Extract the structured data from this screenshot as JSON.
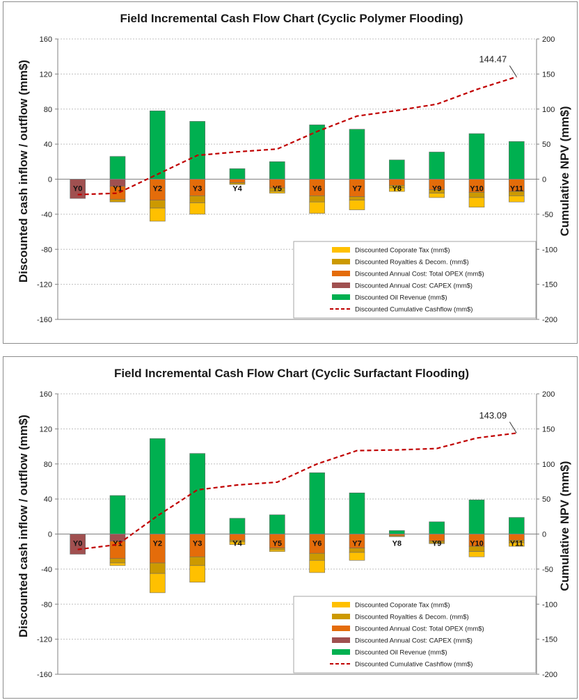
{
  "colors": {
    "tax": "#FFC000",
    "royalty": "#CC9900",
    "opex": "#E46C0A",
    "capex": "#A05050",
    "revenue": "#00B050",
    "cumulative": "#C00000",
    "grid": "#BFBFBF"
  },
  "chart_data": [
    {
      "type": "bar",
      "title": "Field Incremental Cash Flow Chart (Cyclic Polymer Flooding)",
      "ylabel": "Discounted cash inflow / outflow (mm$)",
      "y2label": "Cumulative NPV (mm$)",
      "ylim": [
        -160,
        160
      ],
      "yticks": [
        160,
        120,
        80,
        40,
        0,
        -40,
        -80,
        -120,
        -160
      ],
      "y2lim": [
        -200,
        200
      ],
      "y2ticks": [
        200,
        150,
        100,
        50,
        0,
        -50,
        -100,
        -150,
        -200
      ],
      "categories": [
        "Y0",
        "Y1",
        "Y2",
        "Y3",
        "Y4",
        "Y5",
        "Y6",
        "Y7",
        "Y8",
        "Y9",
        "Y10",
        "Y11"
      ],
      "legend_position": "bottom-right",
      "npv_annotation": "144.47",
      "series": [
        {
          "key": "tax",
          "name": "Discounted Coporate Tax (mm$)",
          "values": [
            0,
            0,
            -15,
            -13,
            0,
            -2,
            -13,
            -11,
            -4,
            -5,
            -11,
            -7
          ]
        },
        {
          "key": "royalty",
          "name": "Discounted Royalties & Decom. (mm$)",
          "values": [
            0,
            -3,
            -9,
            -8,
            -2,
            -4,
            -7,
            -4,
            -3,
            -4,
            -6,
            -5
          ]
        },
        {
          "key": "opex",
          "name": "Discounted Annual Cost: Total OPEX   (mm$)",
          "values": [
            0,
            -15,
            -24,
            -19,
            -4,
            -10,
            -19,
            -20,
            -7,
            -12,
            -15,
            -14
          ]
        },
        {
          "key": "capex",
          "name": "Discounted Annual Cost: CAPEX  (mm$)",
          "values": [
            -22,
            -8,
            0,
            0,
            0,
            0,
            0,
            0,
            0,
            0,
            0,
            0
          ]
        },
        {
          "key": "revenue",
          "name": "Discounted Oil Revenue (mm$)",
          "values": [
            0,
            26,
            78,
            66,
            12,
            20,
            62,
            57,
            22,
            31,
            52,
            43
          ]
        },
        {
          "key": "cumulative",
          "name": "Discounted Cumulative Cashflow (mm$)",
          "line": true,
          "axis": "y2",
          "values": [
            -22,
            -20,
            7,
            34,
            39,
            43,
            68,
            90,
            98,
            107,
            128,
            146
          ]
        }
      ]
    },
    {
      "type": "bar",
      "title": "Field Incremental Cash Flow Chart (Cyclic Surfactant Flooding)",
      "ylabel": "Discounted cash inflow / outflow (mm$)",
      "y2label": "Cumulative NPV (mm$)",
      "ylim": [
        -160,
        160
      ],
      "yticks": [
        160,
        120,
        80,
        40,
        0,
        -40,
        -80,
        -120,
        -160
      ],
      "y2lim": [
        -200,
        200
      ],
      "y2ticks": [
        200,
        150,
        100,
        50,
        0,
        -50,
        -100,
        -150,
        -200
      ],
      "categories": [
        "Y0",
        "Y1",
        "Y2",
        "Y3",
        "Y4",
        "Y5",
        "Y6",
        "Y7",
        "Y8",
        "Y9",
        "Y10",
        "Y11"
      ],
      "legend_position": "bottom-right",
      "npv_annotation": "143.09",
      "series": [
        {
          "key": "tax",
          "name": "Discounted Coporate Tax (mm$)",
          "values": [
            0,
            -3,
            -22,
            -19,
            -3,
            -2,
            -14,
            -9,
            0,
            -1,
            -6,
            -4
          ]
        },
        {
          "key": "royalty",
          "name": "Discounted Royalties & Decom. (mm$)",
          "values": [
            0,
            -5,
            -12,
            -10,
            -2,
            -2,
            -8,
            -5,
            -1,
            -2,
            -6,
            -3
          ]
        },
        {
          "key": "opex",
          "name": "Discounted Annual Cost: Total OPEX   (mm$)",
          "values": [
            0,
            -20,
            -33,
            -26,
            -7,
            -16,
            -22,
            -16,
            -2,
            -8,
            -14,
            -7
          ]
        },
        {
          "key": "capex",
          "name": "Discounted Annual Cost: CAPEX  (mm$)",
          "values": [
            -23,
            -8,
            0,
            0,
            0,
            0,
            0,
            0,
            0,
            0,
            0,
            0
          ]
        },
        {
          "key": "revenue",
          "name": "Discounted Oil Revenue (mm$)",
          "values": [
            0,
            44,
            109,
            92,
            18,
            22,
            70,
            47,
            4,
            14,
            39,
            19
          ]
        },
        {
          "key": "cumulative",
          "name": "Discounted Cumulative Cashflow (mm$)",
          "line": true,
          "axis": "y2",
          "values": [
            -22,
            -15,
            26,
            63,
            70,
            74,
            100,
            119,
            120,
            122,
            137,
            144
          ]
        }
      ]
    }
  ]
}
